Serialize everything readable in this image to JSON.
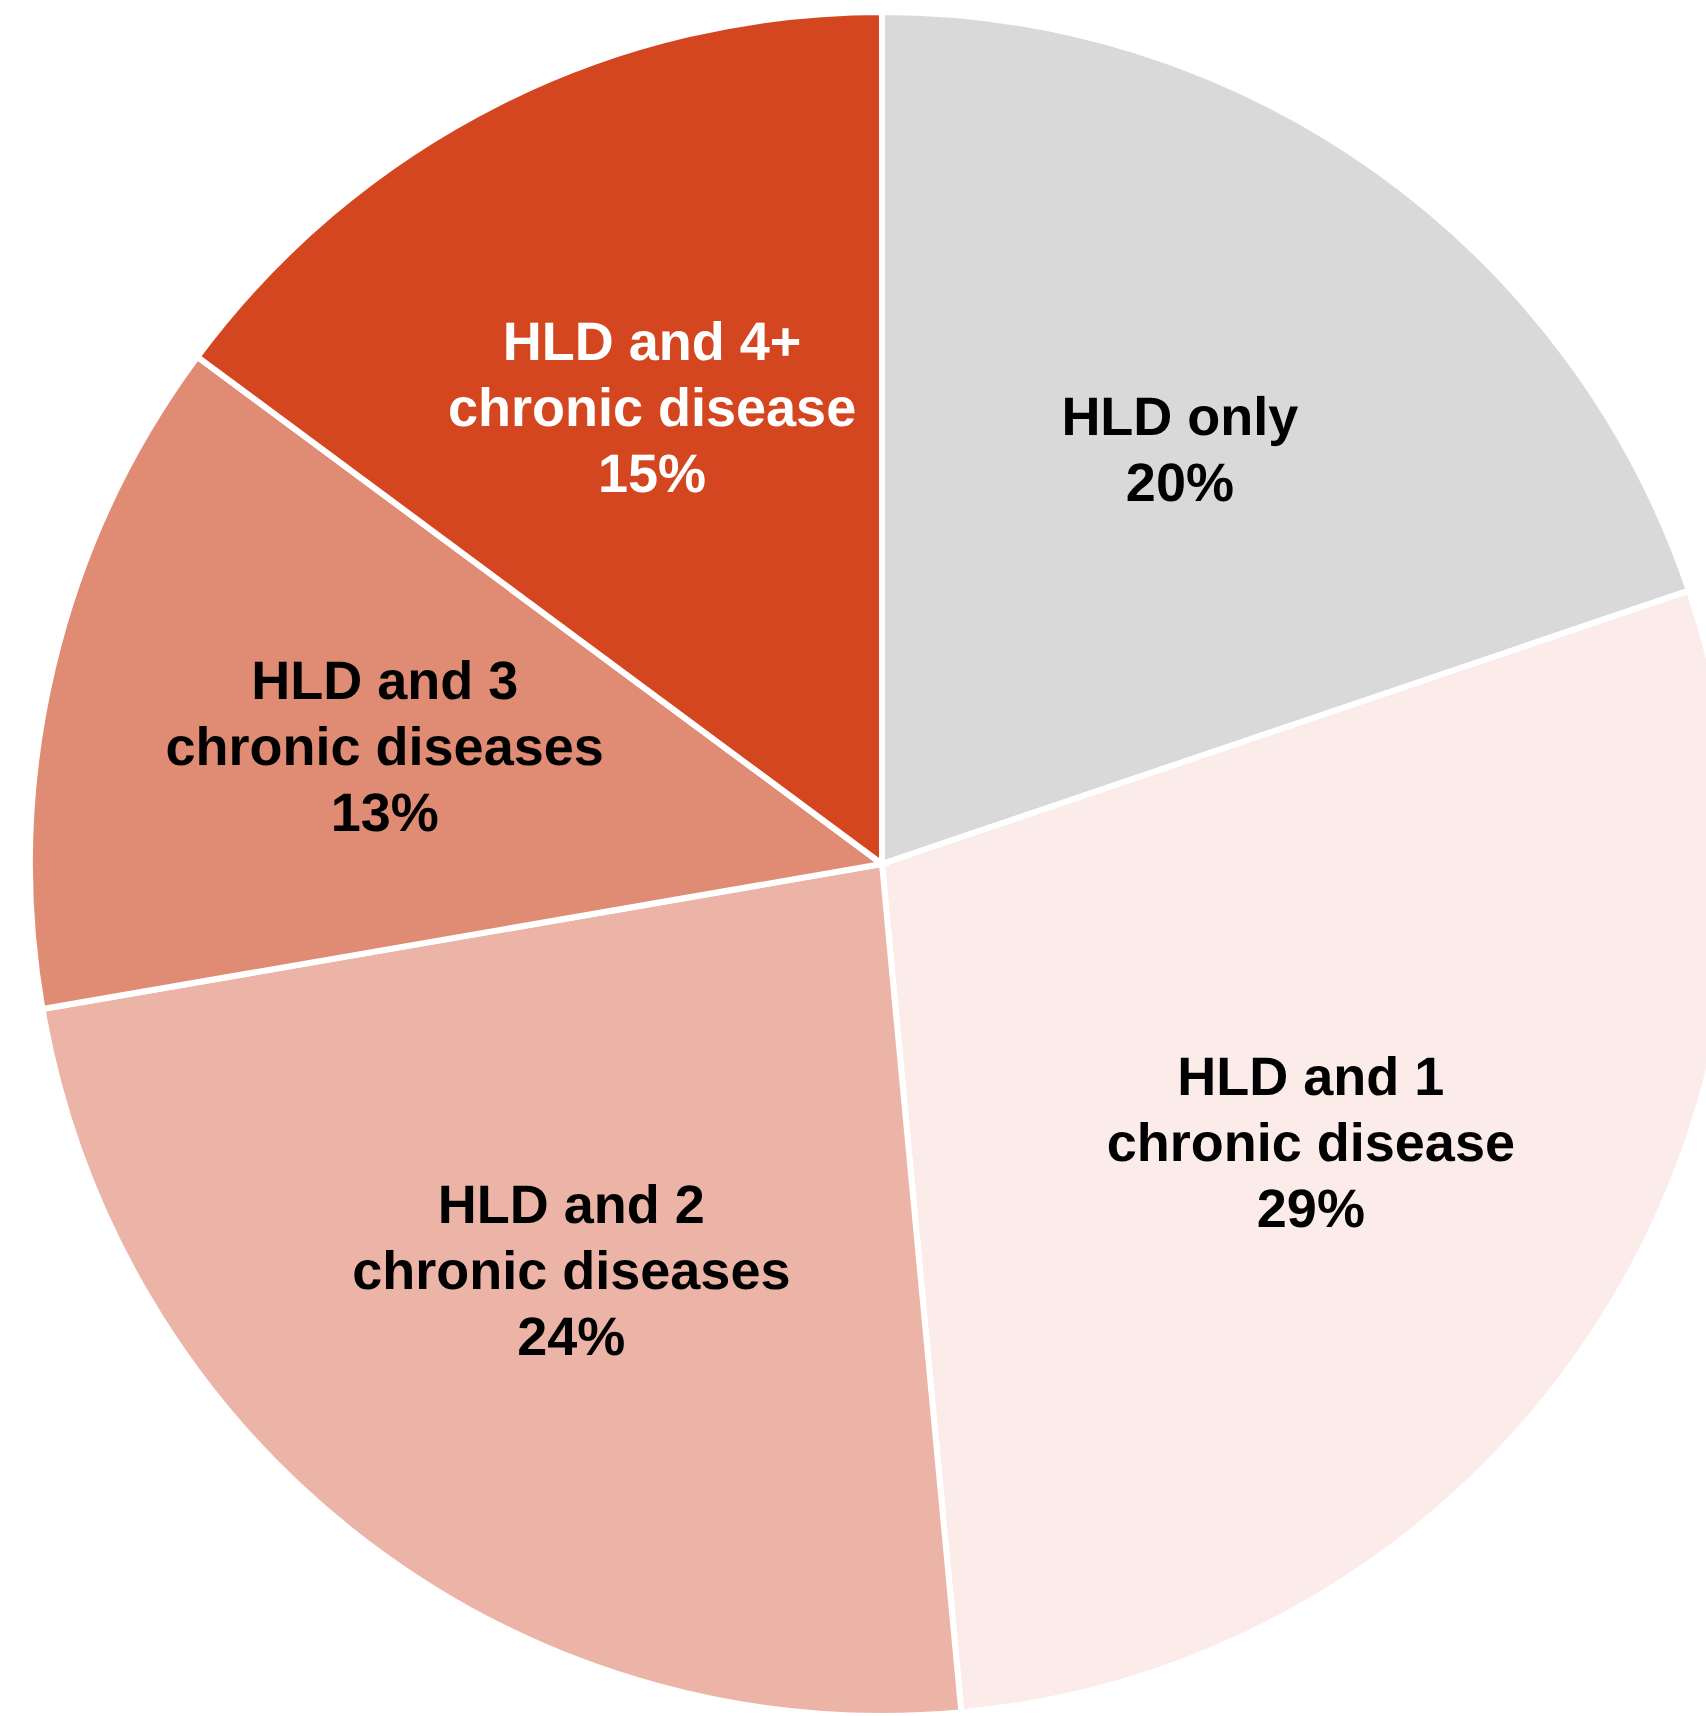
{
  "chart_data": {
    "type": "pie",
    "categories": [
      "HLD only",
      "HLD and 1 chronic disease",
      "HLD and 2 chronic diseases",
      "HLD and 3 chronic diseases",
      "HLD and 4+ chronic disease"
    ],
    "values": [
      20,
      29,
      24,
      13,
      15
    ],
    "value_labels": [
      "20%",
      "29%",
      "24%",
      "13%",
      "15%"
    ],
    "colors": [
      "#d9d9d9",
      "#fbecea",
      "#ecb4a6",
      "#e08b73",
      "#d4461f"
    ]
  }
}
